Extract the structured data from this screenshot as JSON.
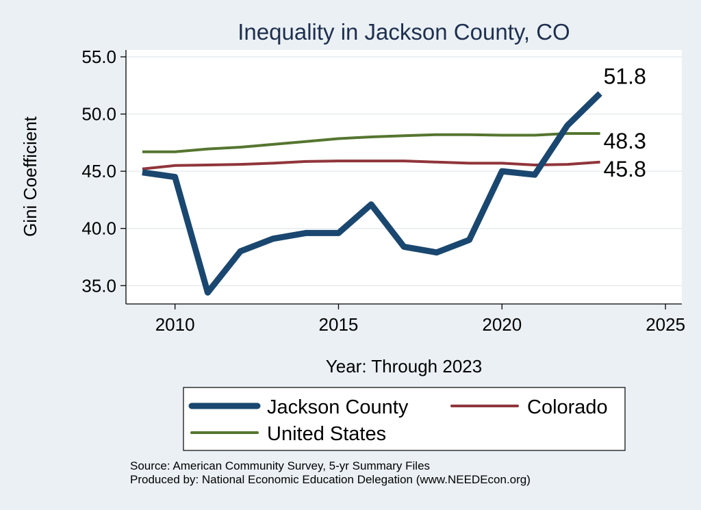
{
  "chart_data": {
    "type": "line",
    "title": "Inequality in Jackson County, CO",
    "xlabel": "Year: Through 2023",
    "ylabel": "Gini Coefficient",
    "xlim": [
      2008.5,
      2025.5
    ],
    "ylim": [
      33.4,
      55.6
    ],
    "xticks": [
      2010,
      2015,
      2020,
      2025
    ],
    "yticks": [
      35,
      40,
      45,
      50,
      55
    ],
    "ytick_labels": [
      "35.0",
      "40.0",
      "45.0",
      "50.0",
      "55.0"
    ],
    "grid": true,
    "legend_position": "bottom",
    "x": [
      2009,
      2010,
      2011,
      2012,
      2013,
      2014,
      2015,
      2016,
      2017,
      2018,
      2019,
      2020,
      2021,
      2022,
      2023
    ],
    "series": [
      {
        "name": "Jackson County",
        "color": "#1a476f",
        "values": [
          44.9,
          44.5,
          34.4,
          38.0,
          39.1,
          39.6,
          39.6,
          42.1,
          38.4,
          37.9,
          39.0,
          45.0,
          44.7,
          49.0,
          51.8
        ],
        "end_label": "51.8"
      },
      {
        "name": "Colorado",
        "color": "#90353b",
        "values": [
          45.2,
          45.5,
          45.55,
          45.6,
          45.7,
          45.85,
          45.9,
          45.9,
          45.9,
          45.8,
          45.7,
          45.7,
          45.55,
          45.6,
          45.8
        ],
        "end_label": "45.8"
      },
      {
        "name": "United States",
        "color": "#55752f",
        "values": [
          46.7,
          46.7,
          46.95,
          47.1,
          47.35,
          47.6,
          47.85,
          48.0,
          48.1,
          48.2,
          48.2,
          48.15,
          48.15,
          48.3,
          48.3
        ],
        "end_label": "48.3"
      }
    ]
  },
  "source": {
    "line1": "Source: American Community Survey, 5-yr Summary Files",
    "line2": "Produced by: National Economic Education Delegation (www.NEEDEcon.org)"
  }
}
